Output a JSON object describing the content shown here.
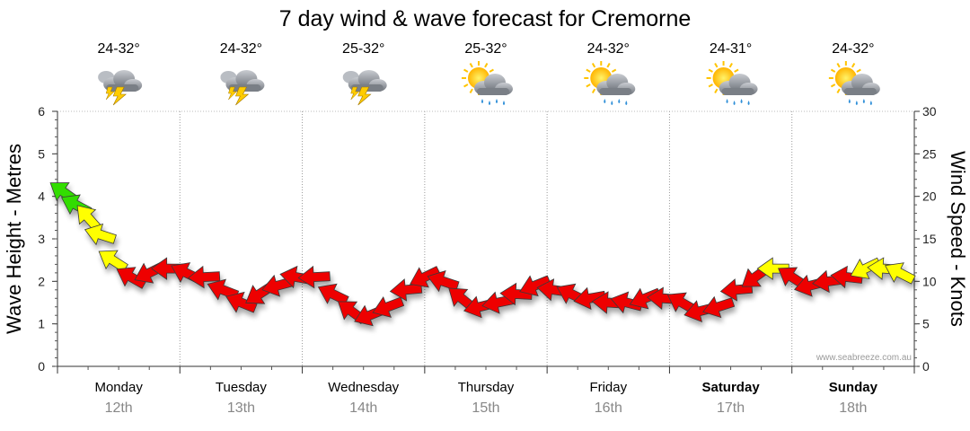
{
  "title": "7 day wind & wave forecast for Cremorne",
  "watermark": "www.seabreeze.com.au",
  "days": [
    {
      "weekday": "Monday",
      "date": "12th",
      "temp": "24-32°",
      "icon": "thunderstorm-cloud-icon",
      "weekend": false
    },
    {
      "weekday": "Tuesday",
      "date": "13th",
      "temp": "24-32°",
      "icon": "thunderstorm-cloud-icon",
      "weekend": false
    },
    {
      "weekday": "Wednesday",
      "date": "14th",
      "temp": "25-32°",
      "icon": "thunderstorm-cloud-icon",
      "weekend": false
    },
    {
      "weekday": "Thursday",
      "date": "15th",
      "temp": "25-32°",
      "icon": "sun-cloud-rain-icon",
      "weekend": false
    },
    {
      "weekday": "Friday",
      "date": "16th",
      "temp": "24-32°",
      "icon": "sun-cloud-rain-icon",
      "weekend": false
    },
    {
      "weekday": "Saturday",
      "date": "17th",
      "temp": "24-31°",
      "icon": "sun-cloud-rain-icon",
      "weekend": true
    },
    {
      "weekday": "Sunday",
      "date": "18th",
      "temp": "24-32°",
      "icon": "sun-cloud-rain-icon",
      "weekend": true
    }
  ],
  "chart_data": {
    "type": "line",
    "left_axis": {
      "label": "Wave Height - Metres",
      "min": 0,
      "max": 6,
      "ticks": [
        0,
        1,
        2,
        3,
        4,
        5,
        6
      ]
    },
    "right_axis": {
      "label": "Wind Speed - Knots",
      "min": 0,
      "max": 30,
      "ticks": [
        0,
        5,
        10,
        15,
        20,
        25,
        30
      ]
    },
    "grid": "vertical dotted lines at each day boundary",
    "x_range_days": [
      0,
      7
    ],
    "wind_legend_colors": {
      "light": "#ee0000",
      "moderate": "#ffff00",
      "strong": "#33dd00"
    },
    "series": [
      {
        "name": "",
        "unit": "knots",
        "points": [
          {
            "day": 0.05,
            "speed": 20.5,
            "color": "#33dd00"
          },
          {
            "day": 0.15,
            "speed": 19.0,
            "color": "#33dd00"
          },
          {
            "day": 0.25,
            "speed": 17.5,
            "color": "#ffff00"
          },
          {
            "day": 0.35,
            "speed": 15.5,
            "color": "#ffff00"
          },
          {
            "day": 0.45,
            "speed": 12.5,
            "color": "#ffff00"
          },
          {
            "day": 0.6,
            "speed": 10.5,
            "color": "#ee0000"
          },
          {
            "day": 0.75,
            "speed": 11.0,
            "color": "#ee0000"
          },
          {
            "day": 0.9,
            "speed": 11.5,
            "color": "#ee0000"
          },
          {
            "day": 1.05,
            "speed": 11.0,
            "color": "#ee0000"
          },
          {
            "day": 1.2,
            "speed": 10.5,
            "color": "#ee0000"
          },
          {
            "day": 1.35,
            "speed": 9.0,
            "color": "#ee0000"
          },
          {
            "day": 1.5,
            "speed": 7.5,
            "color": "#ee0000"
          },
          {
            "day": 1.65,
            "speed": 8.5,
            "color": "#ee0000"
          },
          {
            "day": 1.8,
            "speed": 9.5,
            "color": "#ee0000"
          },
          {
            "day": 1.95,
            "speed": 10.5,
            "color": "#ee0000"
          },
          {
            "day": 2.1,
            "speed": 10.5,
            "color": "#ee0000"
          },
          {
            "day": 2.25,
            "speed": 8.5,
            "color": "#ee0000"
          },
          {
            "day": 2.4,
            "speed": 6.5,
            "color": "#ee0000"
          },
          {
            "day": 2.55,
            "speed": 6.0,
            "color": "#ee0000"
          },
          {
            "day": 2.7,
            "speed": 7.0,
            "color": "#ee0000"
          },
          {
            "day": 2.85,
            "speed": 9.0,
            "color": "#ee0000"
          },
          {
            "day": 3.0,
            "speed": 10.5,
            "color": "#ee0000"
          },
          {
            "day": 3.15,
            "speed": 10.0,
            "color": "#ee0000"
          },
          {
            "day": 3.3,
            "speed": 8.0,
            "color": "#ee0000"
          },
          {
            "day": 3.45,
            "speed": 7.0,
            "color": "#ee0000"
          },
          {
            "day": 3.6,
            "speed": 7.5,
            "color": "#ee0000"
          },
          {
            "day": 3.75,
            "speed": 8.5,
            "color": "#ee0000"
          },
          {
            "day": 3.9,
            "speed": 9.5,
            "color": "#ee0000"
          },
          {
            "day": 4.05,
            "speed": 9.0,
            "color": "#ee0000"
          },
          {
            "day": 4.2,
            "speed": 8.5,
            "color": "#ee0000"
          },
          {
            "day": 4.35,
            "speed": 8.0,
            "color": "#ee0000"
          },
          {
            "day": 4.5,
            "speed": 7.5,
            "color": "#ee0000"
          },
          {
            "day": 4.65,
            "speed": 7.5,
            "color": "#ee0000"
          },
          {
            "day": 4.8,
            "speed": 8.0,
            "color": "#ee0000"
          },
          {
            "day": 4.95,
            "speed": 8.0,
            "color": "#ee0000"
          },
          {
            "day": 5.1,
            "speed": 7.5,
            "color": "#ee0000"
          },
          {
            "day": 5.25,
            "speed": 6.5,
            "color": "#ee0000"
          },
          {
            "day": 5.4,
            "speed": 7.0,
            "color": "#ee0000"
          },
          {
            "day": 5.55,
            "speed": 9.0,
            "color": "#ee0000"
          },
          {
            "day": 5.7,
            "speed": 10.5,
            "color": "#ee0000"
          },
          {
            "day": 5.85,
            "speed": 11.5,
            "color": "#ffff00"
          },
          {
            "day": 6.0,
            "speed": 10.5,
            "color": "#ee0000"
          },
          {
            "day": 6.15,
            "speed": 9.5,
            "color": "#ee0000"
          },
          {
            "day": 6.3,
            "speed": 10.0,
            "color": "#ee0000"
          },
          {
            "day": 6.45,
            "speed": 10.5,
            "color": "#ee0000"
          },
          {
            "day": 6.6,
            "speed": 11.5,
            "color": "#ffff00"
          },
          {
            "day": 6.75,
            "speed": 11.5,
            "color": "#ffff00"
          },
          {
            "day": 6.88,
            "speed": 11.0,
            "color": "#ffff00"
          }
        ]
      }
    ]
  }
}
